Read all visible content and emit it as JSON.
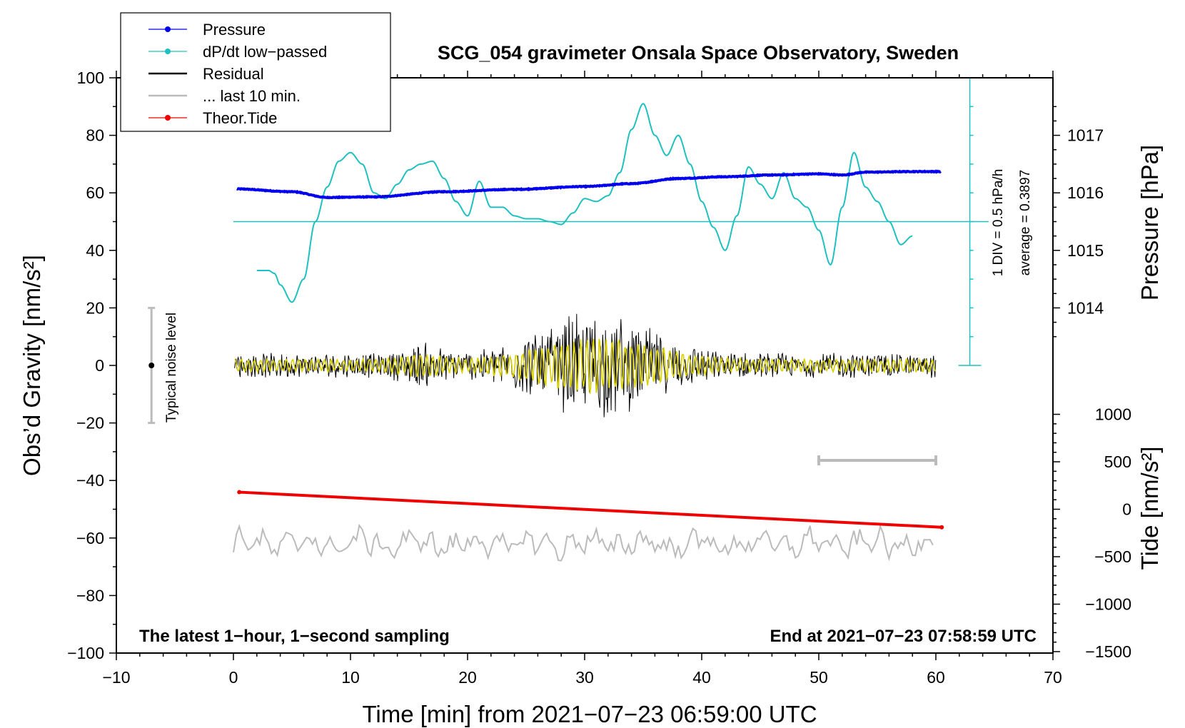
{
  "chart_data": {
    "type": "line",
    "title": "SCG_054 gravimeter Onsala Space Observatory, Sweden",
    "xlabel": "Time [min] from 2021−07−23 06:59:00 UTC",
    "ylabel_left": "Obs’d Gravity [nm/s²]",
    "ylabel_right_pressure": "Pressure [hPa]",
    "ylabel_right_tide": "Tide [nm/s²]",
    "xlim": [
      -10,
      70
    ],
    "ylim_left": [
      -100,
      100
    ],
    "x_ticks": [
      "−10",
      "0",
      "10",
      "20",
      "30",
      "40",
      "50",
      "60",
      "70"
    ],
    "y_ticks_left": [
      "−100",
      "−80",
      "−60",
      "−40",
      "−20",
      "0",
      "20",
      "40",
      "60",
      "80",
      "100"
    ],
    "pressure_ticks": [
      "1014",
      "1015",
      "1016",
      "1017"
    ],
    "tide_ticks": [
      "−1500",
      "−1000",
      "−500",
      "0",
      "500",
      "1000"
    ],
    "footer_left": "The latest 1−hour, 1−second sampling",
    "footer_right": "End at 2021−07−23 07:58:59 UTC",
    "noise_label": "Typical noise level",
    "dpdt_scale_label": "1 DIV = 0.5 hPa/h",
    "dpdt_average_label": "average = 0.3897",
    "legend": [
      {
        "name": "Pressure",
        "color": "#0000ee",
        "marker": true
      },
      {
        "name": "dP/dt low−passed",
        "color": "#20c0c0",
        "marker": true
      },
      {
        "name": "Residual",
        "color": "#000000",
        "marker": false
      },
      {
        "name": "... last 10 min.",
        "color": "#bbbbbb",
        "marker": false
      },
      {
        "name": "Theor.Tide",
        "color": "#ee0000",
        "marker": true
      }
    ],
    "series": [
      {
        "name": "Pressure",
        "unit": "hPa",
        "x": [
          0,
          5,
          8,
          12,
          18,
          24,
          30,
          34,
          38,
          42,
          46,
          50,
          52,
          54,
          58,
          60
        ],
        "values": [
          1016.07,
          1016.02,
          1015.92,
          1015.93,
          1016.02,
          1016.06,
          1016.11,
          1016.16,
          1016.25,
          1016.28,
          1016.31,
          1016.33,
          1016.31,
          1016.36,
          1016.37,
          1016.37
        ]
      },
      {
        "name": "dP/dt low−passed",
        "unit": "nm/s2 scale",
        "x": [
          2,
          3,
          3.5,
          4,
          5,
          6,
          7,
          8,
          9,
          10,
          11,
          12,
          13,
          14,
          15,
          16,
          17,
          18,
          19,
          20,
          21,
          22,
          23,
          24,
          25,
          26,
          27,
          28,
          29,
          30,
          31,
          32,
          33,
          34,
          35,
          36,
          37,
          38,
          39,
          40,
          41,
          42,
          43,
          44,
          45,
          46,
          47,
          48,
          49,
          50,
          51,
          52,
          53,
          54,
          55,
          56,
          57,
          58
        ],
        "values": [
          33,
          33,
          32,
          28,
          22,
          30,
          50,
          62,
          71,
          74,
          70,
          60,
          58,
          63,
          68,
          70,
          71,
          65,
          57,
          52,
          64,
          55,
          55,
          52,
          51,
          51,
          50,
          49,
          53,
          58,
          57,
          59,
          67,
          82,
          91,
          80,
          73,
          80,
          70,
          57,
          48,
          40,
          52,
          69,
          63,
          58,
          67,
          58,
          55,
          47,
          35,
          55,
          74,
          62,
          57,
          50,
          42,
          45
        ]
      },
      {
        "name": "Residual",
        "unit": "nm/s2",
        "x": [
          0,
          60
        ],
        "values": [
          0,
          0
        ],
        "note": "1 s residual noise, envelope about ±4 at the ends and up to ±16 near 25–35 min"
      },
      {
        "name": "... last 10 min.",
        "unit": "nm/s2",
        "x": [
          0,
          60
        ],
        "values": [
          -62,
          -62
        ],
        "note": "scaled repeat of the last 10 min, fluctuating between about −69 and −56"
      },
      {
        "name": "Theor.Tide",
        "unit": "nm/s2",
        "x": [
          0.5,
          60.5
        ],
        "values": [
          180,
          -190
        ]
      }
    ],
    "dpdt_baseline_y": 50,
    "ten_min_bracket_x": [
      50,
      60
    ],
    "noise_bar": {
      "x": -7,
      "y_low": -20,
      "y_high": 20
    }
  }
}
